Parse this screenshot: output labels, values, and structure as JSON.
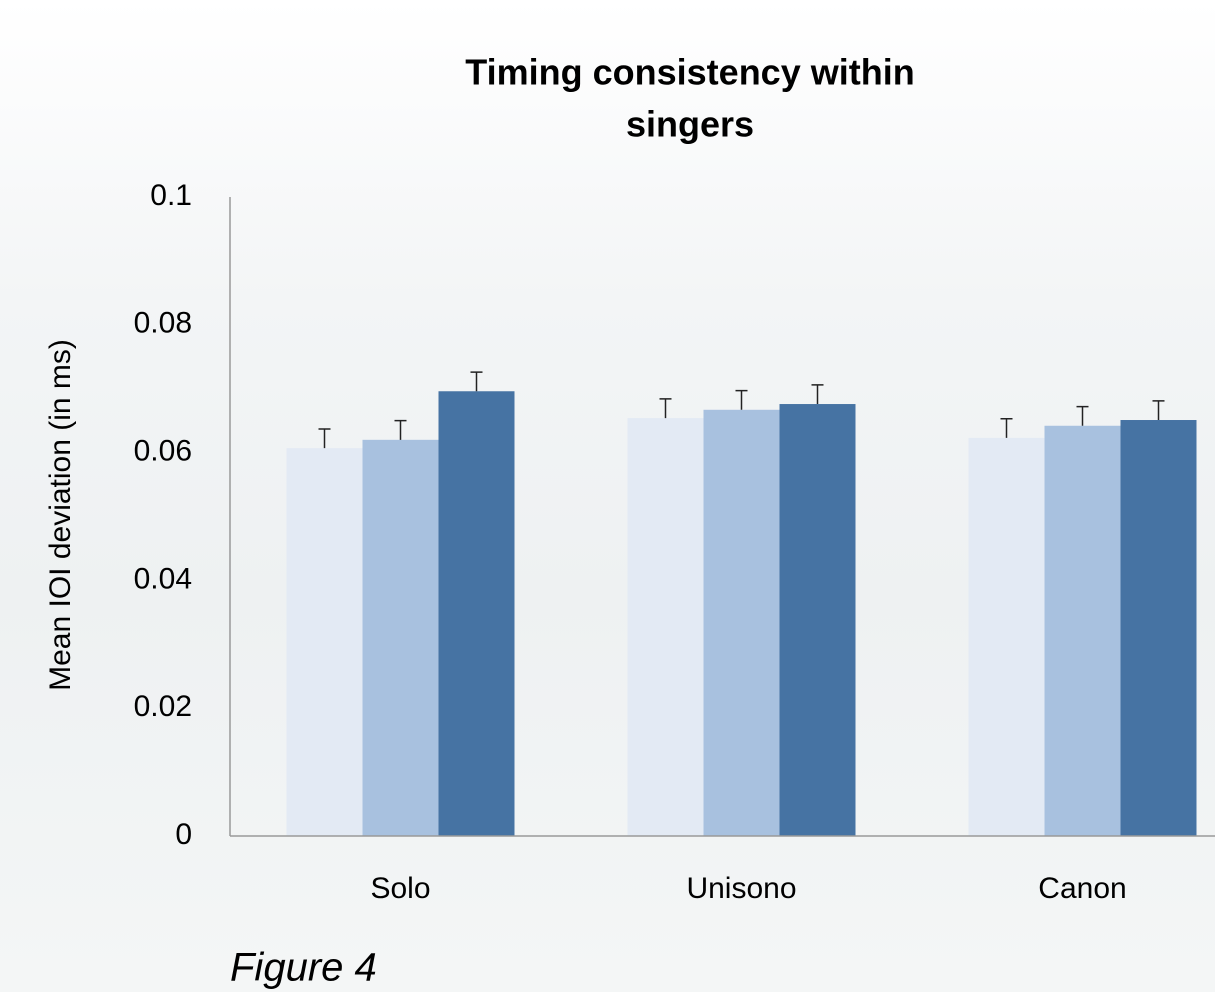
{
  "chart_data": {
    "type": "bar",
    "title": [
      "Timing consistency within",
      "singers"
    ],
    "y_label": "Mean IOI deviation (in ms)",
    "caption": "Figure 4",
    "categories": [
      "Solo",
      "Unisono",
      "Canon"
    ],
    "series": [
      {
        "color": "#e3eaf4",
        "values": [
          0.0607,
          0.0654,
          0.0623
        ],
        "errors": [
          0.003,
          0.003,
          0.003
        ]
      },
      {
        "color": "#a8c1df",
        "values": [
          0.062,
          0.0667,
          0.0642
        ],
        "errors": [
          0.003,
          0.003,
          0.003
        ]
      },
      {
        "color": "#4673a3",
        "values": [
          0.0696,
          0.0676,
          0.0651
        ],
        "errors": [
          0.003,
          0.003,
          0.003
        ]
      }
    ],
    "ylim": [
      0,
      0.1
    ],
    "yticks": [
      0,
      0.02,
      0.04,
      0.06,
      0.08,
      0.1
    ],
    "grid": false
  }
}
